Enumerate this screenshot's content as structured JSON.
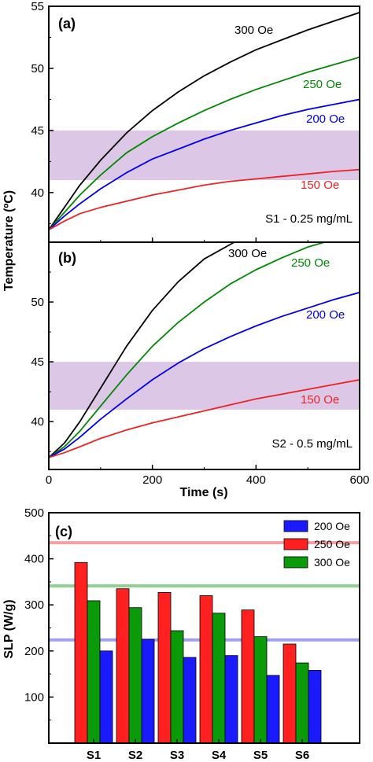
{
  "chart_data": [
    {
      "type": "line",
      "panel_label": "(a)",
      "sample_label": "S1 - 0.25 mg/mL",
      "xlabel": "",
      "ylabel": "Temperature (ºC)",
      "xlim": [
        0,
        600
      ],
      "ylim": [
        36,
        55
      ],
      "yticks": [
        40,
        45,
        50,
        55
      ],
      "band": {
        "from": 41,
        "to": 45,
        "color": "#dcc8e6"
      },
      "series": [
        {
          "name": "300 Oe",
          "color": "#000000",
          "x": [
            0,
            30,
            60,
            100,
            150,
            200,
            250,
            300,
            350,
            400,
            450,
            500,
            550,
            600
          ],
          "y": [
            37,
            38.8,
            40.6,
            42.6,
            44.8,
            46.6,
            48.1,
            49.4,
            50.5,
            51.5,
            52.3,
            53.1,
            53.8,
            54.5
          ]
        },
        {
          "name": "250 Oe",
          "color": "#008800",
          "x": [
            0,
            30,
            60,
            100,
            150,
            200,
            250,
            300,
            350,
            400,
            450,
            500,
            550,
            600
          ],
          "y": [
            37,
            38.4,
            39.8,
            41.4,
            43.2,
            44.5,
            45.6,
            46.6,
            47.5,
            48.3,
            49.0,
            49.7,
            50.3,
            50.9
          ]
        },
        {
          "name": "200 Oe",
          "color": "#0000ee",
          "x": [
            0,
            30,
            60,
            100,
            150,
            200,
            250,
            300,
            350,
            400,
            450,
            500,
            550,
            600
          ],
          "y": [
            37,
            38.1,
            39.1,
            40.3,
            41.6,
            42.7,
            43.5,
            44.3,
            45.0,
            45.6,
            46.2,
            46.7,
            47.1,
            47.5
          ]
        },
        {
          "name": "150 Oe",
          "color": "#ee2222",
          "x": [
            0,
            30,
            60,
            100,
            150,
            200,
            250,
            300,
            350,
            400,
            450,
            500,
            550,
            600
          ],
          "y": [
            37,
            37.7,
            38.3,
            38.8,
            39.3,
            39.8,
            40.2,
            40.6,
            40.9,
            41.1,
            41.3,
            41.5,
            41.7,
            41.85
          ]
        }
      ],
      "annotations": [
        "300 Oe",
        "250 Oe",
        "200 Oe",
        "150 Oe"
      ]
    },
    {
      "type": "line",
      "panel_label": "(b)",
      "sample_label": "S2 - 0.5 mg/mL",
      "xlabel": "Time (s)",
      "ylabel": "",
      "xlim": [
        0,
        600
      ],
      "ylim": [
        36,
        55
      ],
      "xticks": [
        0,
        200,
        400,
        600
      ],
      "yticks": [
        40,
        45,
        50
      ],
      "band": {
        "from": 41,
        "to": 45,
        "color": "#dcc8e6"
      },
      "series": [
        {
          "name": "300 Oe",
          "color": "#000000",
          "x": [
            0,
            30,
            60,
            100,
            150,
            200,
            250,
            300,
            350,
            366
          ],
          "y": [
            37,
            38.2,
            40.0,
            42.8,
            46.3,
            49.3,
            51.7,
            53.6,
            54.8,
            55.2
          ]
        },
        {
          "name": "250 Oe",
          "color": "#008800",
          "x": [
            0,
            30,
            60,
            100,
            150,
            200,
            250,
            300,
            350,
            400,
            450,
            500,
            540
          ],
          "y": [
            37,
            37.9,
            39.2,
            41.3,
            43.9,
            46.3,
            48.3,
            50.0,
            51.5,
            52.7,
            53.7,
            54.6,
            55.1
          ]
        },
        {
          "name": "200 Oe",
          "color": "#0000ee",
          "x": [
            0,
            30,
            60,
            100,
            150,
            200,
            250,
            300,
            350,
            400,
            450,
            500,
            550,
            600
          ],
          "y": [
            37,
            37.7,
            38.7,
            40.2,
            41.9,
            43.5,
            44.9,
            46.1,
            47.1,
            48.0,
            48.8,
            49.5,
            50.2,
            50.8
          ]
        },
        {
          "name": "150 Oe",
          "color": "#ee2222",
          "x": [
            0,
            30,
            60,
            100,
            150,
            200,
            250,
            300,
            350,
            400,
            450,
            500,
            550,
            600
          ],
          "y": [
            37,
            37.4,
            37.9,
            38.6,
            39.3,
            39.9,
            40.4,
            40.9,
            41.4,
            41.9,
            42.3,
            42.7,
            43.1,
            43.5
          ]
        }
      ],
      "annotations": [
        "300 Oe",
        "250 Oe",
        "200 Oe",
        "150 Oe"
      ]
    },
    {
      "type": "bar",
      "panel_label": "(c)",
      "xlabel": "",
      "ylabel": "SLP (W/g)",
      "ylim": [
        0,
        500
      ],
      "yticks": [
        100,
        200,
        300,
        400,
        500
      ],
      "categories": [
        "S1",
        "S2",
        "S3",
        "S4",
        "S5",
        "S6"
      ],
      "series": [
        {
          "name": "250 Oe",
          "color": "#ff2020",
          "values": [
            392,
            335,
            327,
            320,
            289,
            215
          ]
        },
        {
          "name": "300 Oe",
          "color": "#0a9a0a",
          "values": [
            309,
            294,
            244,
            282,
            231,
            174
          ]
        },
        {
          "name": "200 Oe",
          "color": "#1a1aff",
          "values": [
            200,
            225,
            186,
            190,
            147,
            158
          ]
        }
      ],
      "legend": {
        "placement": "top-right",
        "entries": [
          {
            "name": "200 Oe",
            "color": "#1a1aff"
          },
          {
            "name": "250 Oe",
            "color": "#ff2020"
          },
          {
            "name": "300 Oe",
            "color": "#0a9a0a"
          }
        ]
      },
      "reference_lines": [
        {
          "value": 435,
          "color": "#f4a0a0"
        },
        {
          "value": 341,
          "color": "#90d090"
        },
        {
          "value": 224,
          "color": "#a0a0f0"
        }
      ]
    }
  ]
}
